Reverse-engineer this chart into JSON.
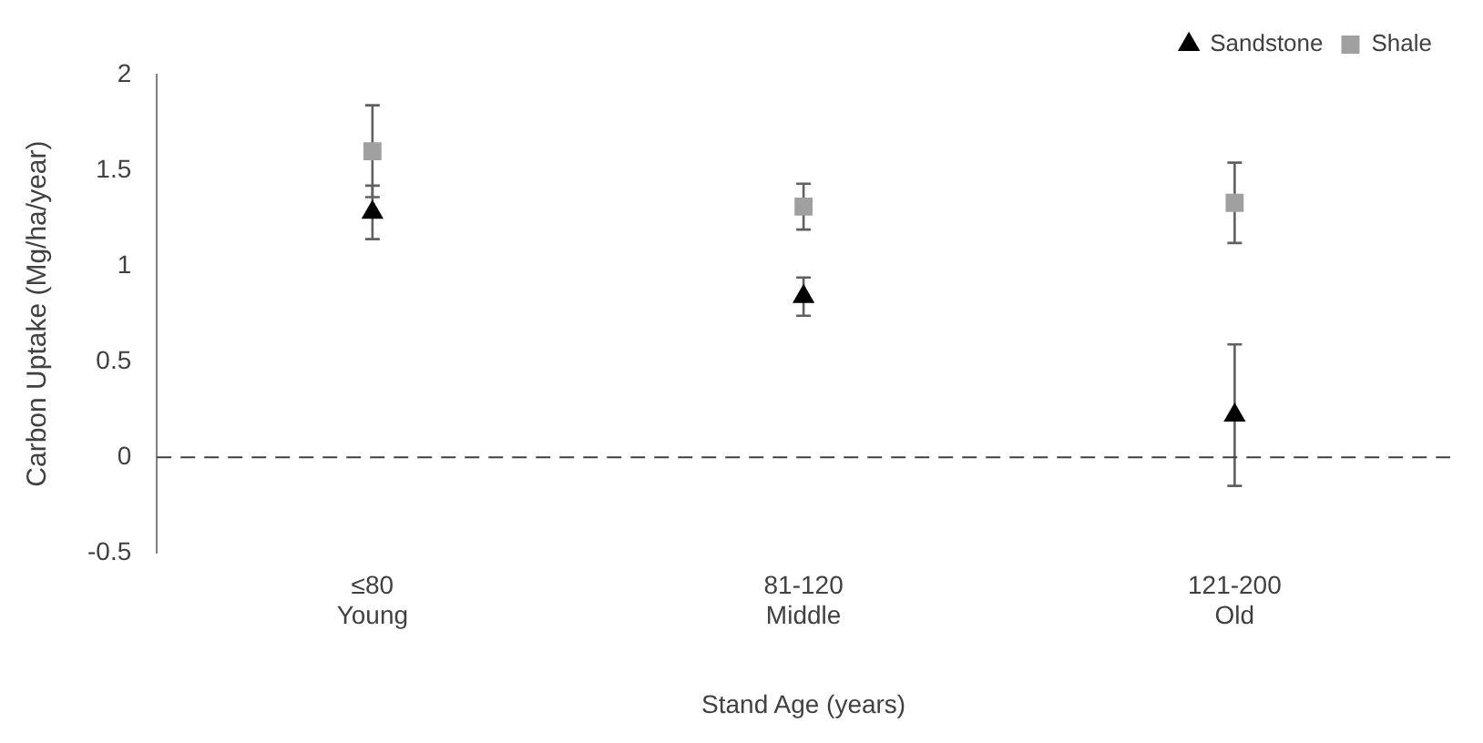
{
  "chart_data": {
    "type": "scatter",
    "xlabel": "Stand Age (years)",
    "ylabel": "Carbon Uptake (Mg/ha/year)",
    "categories": [
      "≤80\nYoung",
      "81-120\nMiddle",
      "121-200\nOld"
    ],
    "series": [
      {
        "name": "Sandstone",
        "color": "#000000",
        "marker": "triangle",
        "x": [
          "≤80\nYoung",
          "81-120\nMiddle",
          "121-200\nOld"
        ],
        "values": [
          1.28,
          0.84,
          0.22
        ],
        "errors": [
          0.14,
          0.1,
          0.37
        ]
      },
      {
        "name": "Shale",
        "color": "#a0a0a0",
        "marker": "square",
        "x": [
          "≤80\nYoung",
          "81-120\nMiddle",
          "121-200\nOld"
        ],
        "values": [
          1.6,
          1.31,
          1.33
        ],
        "errors": [
          0.24,
          0.12,
          0.21
        ]
      }
    ],
    "ylim": [
      -0.5,
      2
    ],
    "yticks": [
      -0.5,
      0,
      0.5,
      1,
      1.5,
      2
    ],
    "grid": false,
    "legend": "top right",
    "ref_lines": [
      {
        "axis": "y",
        "value": 0,
        "color": "#404040",
        "line_style": "dashed"
      }
    ]
  }
}
